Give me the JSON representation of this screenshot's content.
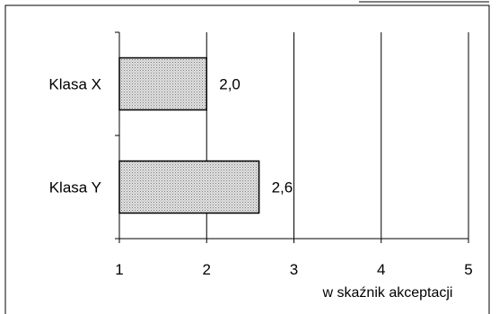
{
  "chart_data": {
    "type": "bar",
    "orientation": "horizontal",
    "categories": [
      "Klasa X",
      "Klasa Y"
    ],
    "values": [
      2.0,
      2.6
    ],
    "data_labels": [
      "2,0",
      "2,6"
    ],
    "xlabel": "w skaźnik akceptacji",
    "ylabel": "",
    "title": "",
    "xlim": [
      1,
      5
    ],
    "x_ticks": [
      1,
      2,
      3,
      4,
      5
    ],
    "x_tick_labels": [
      "1",
      "2",
      "3",
      "4",
      "5"
    ],
    "grid": "vertical",
    "bar_fill": "dotted-gray",
    "colors": {
      "bar_stroke": "#000000",
      "bar_fill": "#c8c8c8",
      "background": "#ffffff"
    }
  }
}
